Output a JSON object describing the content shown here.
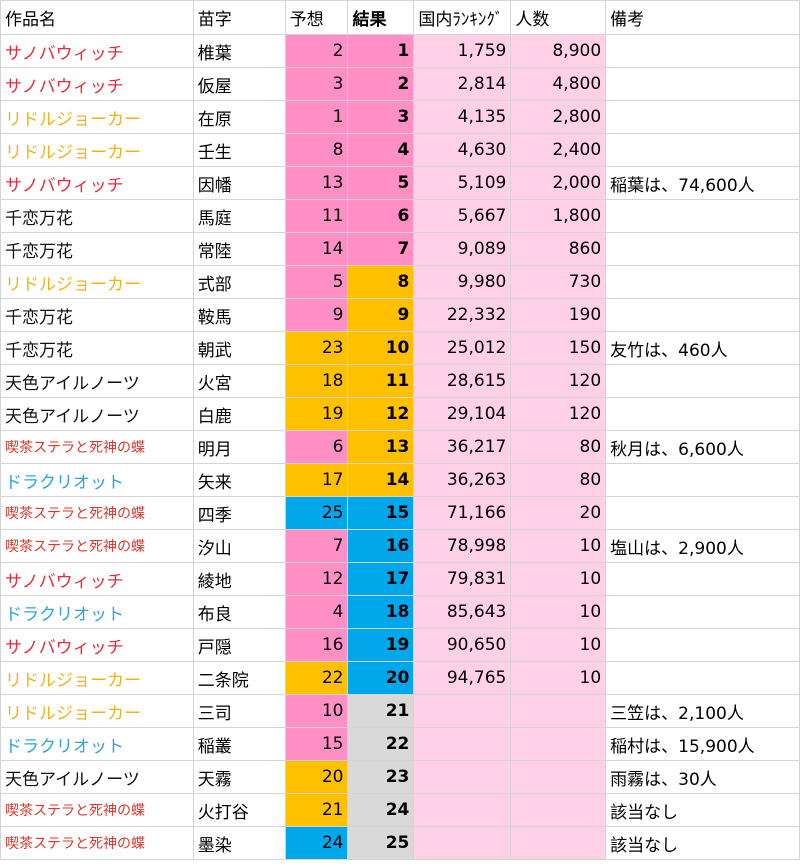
{
  "headers": [
    "作品名",
    "苗字",
    "予想",
    "結果",
    "国内ﾗﾝｷﾝｸﾞ",
    "人数",
    "備考"
  ],
  "title_colors": {
    "サノバウィッチ": "#e8283c",
    "リドルジョーカー": "#f2b21e",
    "千恋万花": "#111111",
    "天色アイルノーツ": "#111111",
    "喫茶ステラと死神の蝶": "#e0362b",
    "ドラクリオット": "#2ea4d9"
  },
  "fill_colors": {
    "pink": "#ff8fc4",
    "orange": "#ffc000",
    "blue": "#00a7ea",
    "gray": "#d9d9d9",
    "light_pink": "#ffd0e6"
  },
  "rows": [
    {
      "title": "サノバウィッチ",
      "name": "椎葉",
      "pred": "2",
      "pred_fill": "pink",
      "result": "1",
      "result_fill": "pink",
      "rank": "1,759",
      "count": "8,900",
      "note": ""
    },
    {
      "title": "サノバウィッチ",
      "name": "仮屋",
      "pred": "3",
      "pred_fill": "pink",
      "result": "2",
      "result_fill": "pink",
      "rank": "2,814",
      "count": "4,800",
      "note": ""
    },
    {
      "title": "リドルジョーカー",
      "name": "在原",
      "pred": "1",
      "pred_fill": "pink",
      "result": "3",
      "result_fill": "pink",
      "rank": "4,135",
      "count": "2,800",
      "note": ""
    },
    {
      "title": "リドルジョーカー",
      "name": "壬生",
      "pred": "8",
      "pred_fill": "pink",
      "result": "4",
      "result_fill": "pink",
      "rank": "4,630",
      "count": "2,400",
      "note": ""
    },
    {
      "title": "サノバウィッチ",
      "name": "因幡",
      "pred": "13",
      "pred_fill": "pink",
      "result": "5",
      "result_fill": "pink",
      "rank": "5,109",
      "count": "2,000",
      "note": "稲葉は、74,600人"
    },
    {
      "title": "千恋万花",
      "name": "馬庭",
      "pred": "11",
      "pred_fill": "pink",
      "result": "6",
      "result_fill": "pink",
      "rank": "5,667",
      "count": "1,800",
      "note": ""
    },
    {
      "title": "千恋万花",
      "name": "常陸",
      "pred": "14",
      "pred_fill": "pink",
      "result": "7",
      "result_fill": "pink",
      "rank": "9,089",
      "count": "860",
      "note": ""
    },
    {
      "title": "リドルジョーカー",
      "name": "式部",
      "pred": "5",
      "pred_fill": "pink",
      "result": "8",
      "result_fill": "orange",
      "rank": "9,980",
      "count": "730",
      "note": ""
    },
    {
      "title": "千恋万花",
      "name": "鞍馬",
      "pred": "9",
      "pred_fill": "pink",
      "result": "9",
      "result_fill": "orange",
      "rank": "22,332",
      "count": "190",
      "note": ""
    },
    {
      "title": "千恋万花",
      "name": "朝武",
      "pred": "23",
      "pred_fill": "orange",
      "result": "10",
      "result_fill": "orange",
      "rank": "25,012",
      "count": "150",
      "note": "友竹は、460人"
    },
    {
      "title": "天色アイルノーツ",
      "name": "火宮",
      "pred": "18",
      "pred_fill": "orange",
      "result": "11",
      "result_fill": "orange",
      "rank": "28,615",
      "count": "120",
      "note": ""
    },
    {
      "title": "天色アイルノーツ",
      "name": "白鹿",
      "pred": "19",
      "pred_fill": "orange",
      "result": "12",
      "result_fill": "orange",
      "rank": "29,104",
      "count": "120",
      "note": ""
    },
    {
      "title": "喫茶ステラと死神の蝶",
      "name": "明月",
      "pred": "6",
      "pred_fill": "pink",
      "result": "13",
      "result_fill": "orange",
      "rank": "36,217",
      "count": "80",
      "note": "秋月は、6,600人"
    },
    {
      "title": "ドラクリオット",
      "name": "矢来",
      "pred": "17",
      "pred_fill": "orange",
      "result": "14",
      "result_fill": "orange",
      "rank": "36,263",
      "count": "80",
      "note": ""
    },
    {
      "title": "喫茶ステラと死神の蝶",
      "name": "四季",
      "pred": "25",
      "pred_fill": "blue",
      "result": "15",
      "result_fill": "blue",
      "rank": "71,166",
      "count": "20",
      "note": ""
    },
    {
      "title": "喫茶ステラと死神の蝶",
      "name": "汐山",
      "pred": "7",
      "pred_fill": "pink",
      "result": "16",
      "result_fill": "blue",
      "rank": "78,998",
      "count": "10",
      "note": "塩山は、2,900人"
    },
    {
      "title": "サノバウィッチ",
      "name": "綾地",
      "pred": "12",
      "pred_fill": "pink",
      "result": "17",
      "result_fill": "blue",
      "rank": "79,831",
      "count": "10",
      "note": ""
    },
    {
      "title": "ドラクリオット",
      "name": "布良",
      "pred": "4",
      "pred_fill": "pink",
      "result": "18",
      "result_fill": "blue",
      "rank": "85,643",
      "count": "10",
      "note": ""
    },
    {
      "title": "サノバウィッチ",
      "name": "戸隠",
      "pred": "16",
      "pred_fill": "pink",
      "result": "19",
      "result_fill": "blue",
      "rank": "90,650",
      "count": "10",
      "note": ""
    },
    {
      "title": "リドルジョーカー",
      "name": "二条院",
      "pred": "22",
      "pred_fill": "orange",
      "result": "20",
      "result_fill": "blue",
      "rank": "94,765",
      "count": "10",
      "note": ""
    },
    {
      "title": "リドルジョーカー",
      "name": "三司",
      "pred": "10",
      "pred_fill": "pink",
      "result": "21",
      "result_fill": "gray",
      "rank": "",
      "count": "",
      "note": "三笠は、2,100人"
    },
    {
      "title": "ドラクリオット",
      "name": "稲叢",
      "pred": "15",
      "pred_fill": "pink",
      "result": "22",
      "result_fill": "gray",
      "rank": "",
      "count": "",
      "note": "稲村は、15,900人"
    },
    {
      "title": "天色アイルノーツ",
      "name": "天霧",
      "pred": "20",
      "pred_fill": "orange",
      "result": "23",
      "result_fill": "gray",
      "rank": "",
      "count": "",
      "note": "雨霧は、30人"
    },
    {
      "title": "喫茶ステラと死神の蝶",
      "name": "火打谷",
      "pred": "21",
      "pred_fill": "orange",
      "result": "24",
      "result_fill": "gray",
      "rank": "",
      "count": "",
      "note": "該当なし"
    },
    {
      "title": "喫茶ステラと死神の蝶",
      "name": "墨染",
      "pred": "24",
      "pred_fill": "blue",
      "result": "25",
      "result_fill": "gray",
      "rank": "",
      "count": "",
      "note": "該当なし"
    }
  ]
}
